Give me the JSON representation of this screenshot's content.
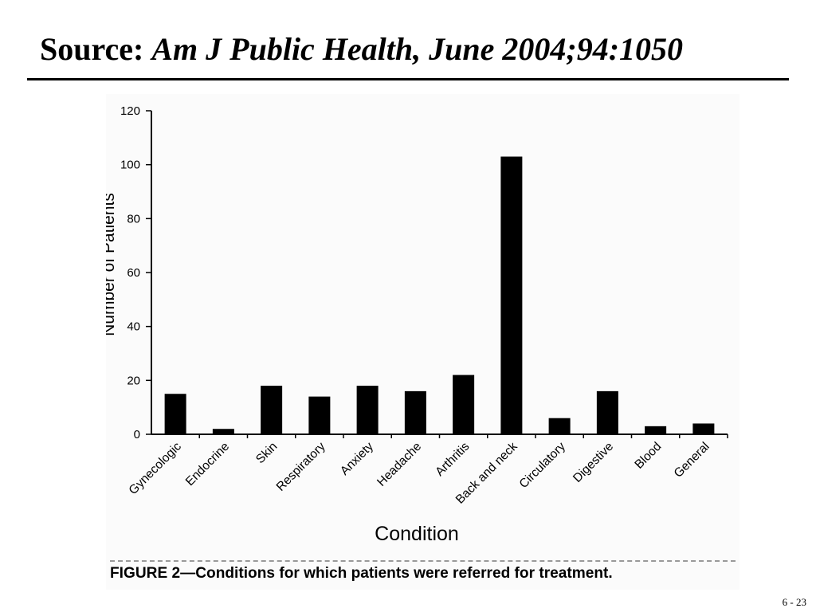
{
  "slide": {
    "title_prefix": "Source:",
    "title_source": "Am J Public Health, June 2004;94:1050",
    "page_number": "6 - 23"
  },
  "figure": {
    "caption": "FIGURE 2—Conditions for which patients were referred for treatment."
  },
  "chart_data": {
    "type": "bar",
    "title": "",
    "xlabel": "Condition",
    "ylabel": "Number of Patients",
    "ylim": [
      0,
      120
    ],
    "yticks": [
      0,
      20,
      40,
      60,
      80,
      100,
      120
    ],
    "categories": [
      "Gynecologic",
      "Endocrine",
      "Skin",
      "Respiratory",
      "Anxiety",
      "Headache",
      "Arthritis",
      "Back and neck",
      "Circulatory",
      "Digestive",
      "Blood",
      "General"
    ],
    "values": [
      15,
      2,
      18,
      14,
      18,
      16,
      22,
      103,
      6,
      16,
      3,
      4
    ],
    "grid": false,
    "legend": "none",
    "bar_color": "#000000"
  }
}
